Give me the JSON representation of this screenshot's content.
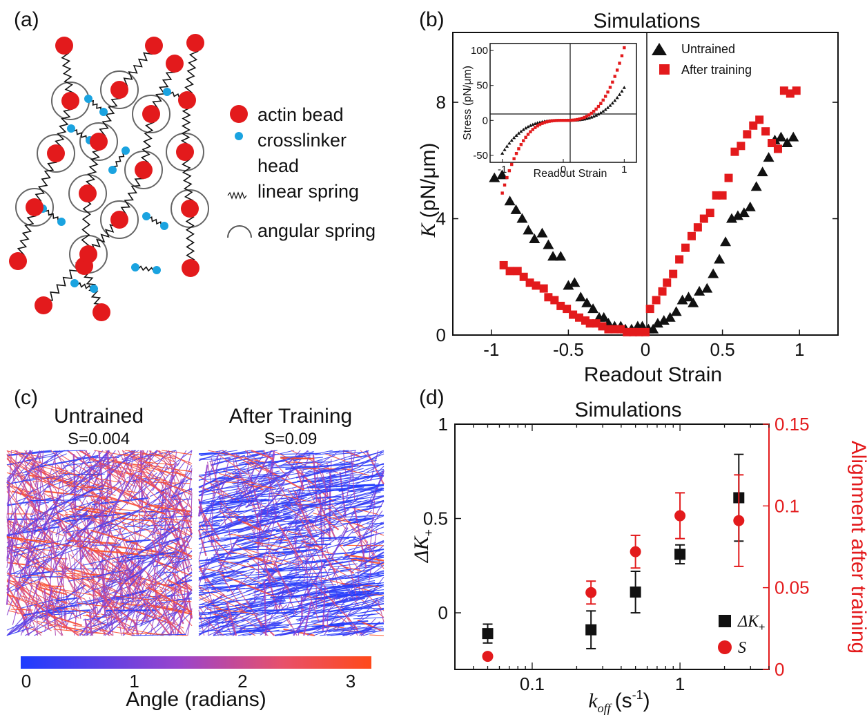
{
  "panel_labels": {
    "a": "(a)",
    "b": "(b)",
    "c": "(c)",
    "d": "(d)"
  },
  "colors": {
    "red": "#e31a1c",
    "black": "#111111",
    "blue": "#1aa3e0",
    "colorbar_start": "#1e3cff",
    "colorbar_mid": "#9944cc",
    "colorbar_end": "#ff4a1a"
  },
  "schematic": {
    "legend": [
      {
        "icon": "actin-bead",
        "label": "actin bead"
      },
      {
        "icon": "crosslinker-head",
        "label": "crosslinker"
      },
      {
        "icon": "none",
        "label": "head"
      },
      {
        "icon": "linear-spring",
        "label": "linear spring"
      },
      {
        "icon": "angular-spring",
        "label": "angular spring"
      }
    ]
  },
  "colorbar": {
    "ticks": [
      "0",
      "1",
      "2",
      "3"
    ],
    "label": "Angle (radians)"
  },
  "panel_c": {
    "left_title": "Untrained",
    "left_sub": "S=0.004",
    "right_title": "After Training",
    "right_sub": "S=0.09"
  },
  "chart_data": [
    {
      "id": "b",
      "type": "scatter",
      "title": "Simulations",
      "xlabel": "Readout Strain",
      "ylabel_symbol": "K",
      "ylabel_unit": "(pN/μm)",
      "xlim": [
        -1.25,
        1.25
      ],
      "ylim": [
        0,
        10.4
      ],
      "xticks": [
        "-1",
        "-0.5",
        "0",
        "0.5",
        "1"
      ],
      "yticks": [
        "0",
        "4",
        "8"
      ],
      "legend": "top-right",
      "series": [
        {
          "name": "Untrained",
          "marker": "triangle",
          "color": "#111111",
          "x": [
            -0.98,
            -0.93,
            -0.88,
            -0.84,
            -0.8,
            -0.76,
            -0.72,
            -0.67,
            -0.63,
            -0.6,
            -0.55,
            -0.5,
            -0.46,
            -0.42,
            -0.38,
            -0.34,
            -0.3,
            -0.27,
            -0.24,
            -0.2,
            -0.16,
            -0.13,
            -0.09,
            -0.05,
            -0.02,
            0.02,
            0.05,
            0.08,
            0.12,
            0.16,
            0.2,
            0.24,
            0.28,
            0.31,
            0.35,
            0.4,
            0.44,
            0.48,
            0.52,
            0.56,
            0.6,
            0.64,
            0.68,
            0.72,
            0.76,
            0.8,
            0.84,
            0.88,
            0.92,
            0.96
          ],
          "y": [
            5.4,
            5.5,
            4.6,
            4.3,
            4.0,
            3.6,
            3.3,
            3.5,
            3.1,
            2.7,
            2.7,
            1.7,
            1.8,
            1.3,
            1.1,
            0.9,
            0.6,
            0.6,
            0.4,
            0.3,
            0.3,
            0.2,
            0.2,
            0.3,
            0.3,
            0.2,
            0.2,
            0.4,
            0.5,
            0.6,
            0.8,
            1.2,
            1.3,
            1.1,
            1.5,
            1.6,
            2.1,
            2.6,
            3.2,
            4.0,
            4.1,
            4.2,
            4.4,
            5.1,
            5.6,
            6.1,
            6.7,
            6.8,
            6.6,
            6.8
          ]
        },
        {
          "name": "After training",
          "marker": "square",
          "color": "#e31a1c",
          "x": [
            -0.92,
            -0.88,
            -0.83,
            -0.79,
            -0.75,
            -0.71,
            -0.66,
            -0.63,
            -0.59,
            -0.55,
            -0.51,
            -0.47,
            -0.43,
            -0.39,
            -0.36,
            -0.32,
            -0.28,
            -0.24,
            -0.2,
            -0.16,
            -0.12,
            -0.08,
            -0.04,
            0.0,
            0.03,
            0.07,
            0.11,
            0.14,
            0.18,
            0.22,
            0.26,
            0.3,
            0.34,
            0.38,
            0.42,
            0.46,
            0.5,
            0.54,
            0.58,
            0.62,
            0.66,
            0.7,
            0.74,
            0.78,
            0.82,
            0.86,
            0.9,
            0.94,
            0.98
          ],
          "y": [
            2.4,
            2.2,
            2.2,
            2.0,
            1.8,
            1.7,
            1.6,
            1.3,
            1.2,
            1.0,
            0.9,
            0.7,
            0.6,
            0.5,
            0.4,
            0.4,
            0.3,
            0.2,
            0.2,
            0.2,
            0.1,
            0.1,
            0.1,
            0.1,
            0.9,
            1.2,
            1.5,
            1.8,
            2.1,
            2.6,
            3.0,
            3.4,
            3.7,
            4.0,
            4.2,
            4.8,
            4.8,
            5.4,
            6.3,
            6.5,
            6.9,
            7.2,
            7.4,
            7.0,
            6.6,
            6.4,
            8.4,
            8.3,
            8.4
          ]
        }
      ]
    },
    {
      "id": "b-inset",
      "type": "scatter",
      "xlabel": "Readout Strain",
      "ylabel": "Stress (pN/μm)",
      "xlim": [
        -1.2,
        1.2
      ],
      "ylim": [
        -60,
        110
      ],
      "xticks": [
        "-1",
        "0",
        "1"
      ],
      "yticks": [
        "-50",
        "0",
        "50",
        "100"
      ],
      "series": [
        {
          "name": "Untrained",
          "color": "#111111",
          "k3": 47
        },
        {
          "name": "After training",
          "color": "#e31a1c",
          "k3": 104
        }
      ]
    },
    {
      "id": "d",
      "type": "scatter",
      "title": "Simulations",
      "xlabel_symbol": "k",
      "xlabel_subscript": "off",
      "xlabel_unit": "(s",
      "xlabel_unit_sup": "-1",
      "xlabel_unit_close": ")",
      "ylabel_symbol": "ΔK",
      "ylabel_subscript": "+",
      "y2label": "Alignment after training",
      "xscale": "log",
      "xlim": [
        0.03,
        4.0
      ],
      "ylim": [
        -0.3,
        1.0
      ],
      "y2lim": [
        0,
        0.15
      ],
      "xticks": [
        {
          "v": 0.1,
          "label": "0.1"
        },
        {
          "v": 1,
          "label": "1"
        }
      ],
      "yticks": [
        "0",
        "0.5",
        "1"
      ],
      "y2ticks": [
        "0",
        "0.05",
        "0.1",
        "0.15"
      ],
      "legend": "bottom-right",
      "series": [
        {
          "name": "ΔK+",
          "legend_symbol": "ΔK",
          "legend_sub": "+",
          "axis": "left",
          "marker": "square",
          "color": "#111111",
          "x": [
            0.05,
            0.25,
            0.5,
            1.0,
            2.5
          ],
          "y": [
            -0.11,
            -0.09,
            0.11,
            0.31,
            0.61
          ],
          "err": [
            0.05,
            0.1,
            0.11,
            0.05,
            0.23
          ]
        },
        {
          "name": "S",
          "legend_symbol": "S",
          "axis": "right",
          "marker": "circle",
          "color": "#e31a1c",
          "x": [
            0.05,
            0.25,
            0.5,
            1.0,
            2.5
          ],
          "y": [
            0.008,
            0.047,
            0.072,
            0.094,
            0.091
          ],
          "err": [
            0.0,
            0.007,
            0.01,
            0.014,
            0.028
          ]
        }
      ]
    }
  ]
}
